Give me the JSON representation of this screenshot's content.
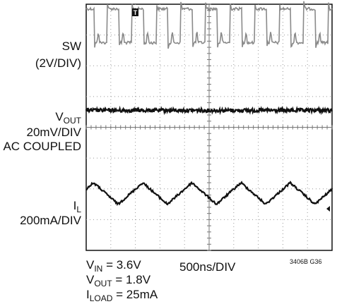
{
  "chart_data": {
    "type": "line",
    "title": "",
    "grid": true,
    "divisions": {
      "x": 10,
      "y": 8
    },
    "trigger_marker": "T",
    "timebase": "500ns/DIV",
    "figure_id": "3406B G36",
    "channels": [
      {
        "name": "SW",
        "scale": "(2V/DIV)",
        "waveform": "switching",
        "color": "#8a8a8a",
        "switching_period_ns": 500,
        "high_level_div": 1.3,
        "low_level_div": -0.9,
        "baseline_div": 3.2
      },
      {
        "name": "V",
        "name_sub": "OUT",
        "scale": "20mV/DIV",
        "coupling": "AC COUPLED",
        "waveform": "noise",
        "color": "#111111",
        "noise_div": 0.06,
        "baseline_div": 0.55
      },
      {
        "name": "I",
        "name_sub": "L",
        "scale": "200mA/DIV",
        "waveform": "triangle",
        "color": "#111111",
        "period_ns": 1000,
        "amplitude_div": 0.35,
        "baseline_div": -2.15
      }
    ],
    "conditions": [
      {
        "name": "V",
        "sub": "IN",
        "value": " = 3.6V"
      },
      {
        "name": "V",
        "sub": "OUT",
        "value": " = 1.8V"
      },
      {
        "name": "I",
        "sub": "LOAD",
        "value": " = 25mA"
      }
    ]
  }
}
